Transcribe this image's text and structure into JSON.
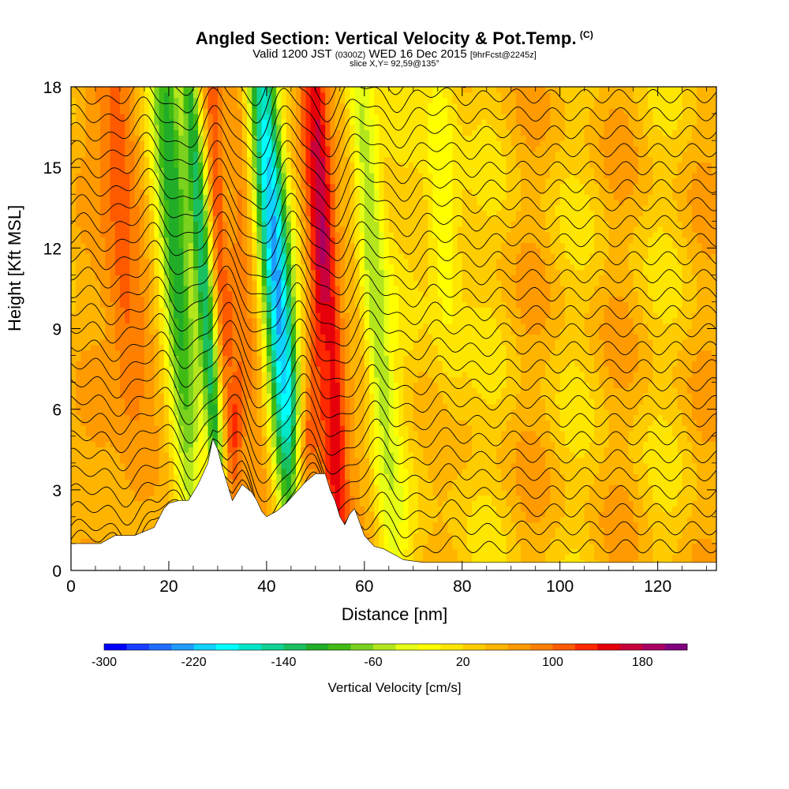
{
  "title": {
    "main": "Angled Section: Vertical Velocity & Pot.Temp.",
    "main_suffix": "(C)",
    "valid_prefix": "Valid 1200 JST",
    "valid_zulu": "(0300Z)",
    "valid_date": "WED 16 Dec 2015",
    "forecast": "[9hrFcst@2245z]",
    "slice": "slice X,Y= 92,59@135°"
  },
  "chart_data": {
    "type": "heatmap",
    "xlabel": "Distance [nm]",
    "ylabel": "Height [Kft MSL]",
    "xlim": [
      0,
      132
    ],
    "ylim": [
      0,
      18
    ],
    "xticks": [
      0,
      20,
      40,
      60,
      80,
      100,
      120
    ],
    "yticks": [
      0,
      3,
      6,
      9,
      12,
      15,
      18
    ],
    "colorbar": {
      "label": "Vertical Velocity [cm/s]",
      "min": -300,
      "max": 200,
      "step": 20,
      "tick_labels": [
        -300,
        -220,
        -140,
        -60,
        20,
        100,
        180
      ],
      "colors": [
        "#0000ff",
        "#1a3cff",
        "#1f6cff",
        "#1e9cff",
        "#10d2ff",
        "#00ffff",
        "#00e6c8",
        "#10d294",
        "#1ac060",
        "#22ad28",
        "#40bb14",
        "#7ad21e",
        "#b4e61e",
        "#e6ff14",
        "#ffff00",
        "#ffe600",
        "#ffcc00",
        "#ffb400",
        "#ff9a00",
        "#ff8000",
        "#ff5a00",
        "#ff2800",
        "#e6000a",
        "#c8003c",
        "#aa0064",
        "#800080"
      ]
    },
    "terrain_kft": {
      "x": [
        0,
        6,
        9,
        13,
        17,
        19,
        20,
        22,
        24,
        26,
        28,
        29,
        30,
        31,
        32,
        33,
        34,
        35,
        37,
        38,
        39,
        40,
        42,
        44,
        46,
        48,
        50,
        52,
        53,
        54,
        55,
        56,
        57,
        58,
        60,
        62,
        64,
        66,
        68,
        72,
        80,
        90,
        100,
        110,
        120,
        132
      ],
      "y": [
        1.0,
        1.0,
        1.3,
        1.3,
        1.6,
        2.3,
        2.5,
        2.6,
        2.6,
        3.2,
        4.0,
        4.9,
        4.5,
        3.8,
        3.2,
        2.6,
        2.9,
        3.2,
        2.9,
        2.6,
        2.2,
        2.0,
        2.2,
        2.5,
        2.9,
        3.3,
        3.6,
        3.6,
        3.0,
        2.6,
        2.0,
        1.7,
        2.1,
        2.3,
        1.3,
        0.9,
        0.8,
        0.6,
        0.4,
        0.3,
        0.3,
        0.3,
        0.3,
        0.3,
        0.3,
        0.3
      ]
    },
    "velocity_features": [
      {
        "x": 17,
        "y": 8,
        "dx": 8,
        "dy": 26,
        "slope": -0.9,
        "value": 60
      },
      {
        "x": 10,
        "y": 14,
        "dx": 4,
        "dy": 12,
        "slope": -0.3,
        "value": 110
      },
      {
        "x": 21,
        "y": 13,
        "dx": 3.5,
        "dy": 14,
        "slope": -0.35,
        "value": -120
      },
      {
        "x": 33,
        "y": 5,
        "dx": 2.5,
        "dy": 5,
        "slope": 0.6,
        "value": 140
      },
      {
        "x": 32,
        "y": 9,
        "dx": 2.5,
        "dy": 4,
        "slope": 0.6,
        "value": 100
      },
      {
        "x": 30,
        "y": 13,
        "dx": 2,
        "dy": 14,
        "slope": -0.2,
        "value": 120
      },
      {
        "x": 27,
        "y": 11,
        "dx": 2,
        "dy": 14,
        "slope": -0.4,
        "value": -140
      },
      {
        "x": 35,
        "y": 14,
        "dx": 3,
        "dy": 14,
        "slope": -0.3,
        "value": 90
      },
      {
        "x": 42,
        "y": 11,
        "dx": 3.3,
        "dy": 14,
        "slope": -0.4,
        "value": -230
      },
      {
        "x": 52,
        "y": 11,
        "dx": 3.5,
        "dy": 14,
        "slope": -0.3,
        "value": 190
      },
      {
        "x": 50,
        "y": 6,
        "dx": 3,
        "dy": 4,
        "slope": 0.7,
        "value": 120
      },
      {
        "x": 57,
        "y": 10,
        "dx": 2.5,
        "dy": 14,
        "slope": -0.3,
        "value": 60
      },
      {
        "x": 62,
        "y": 11,
        "dx": 3,
        "dy": 14,
        "slope": -0.4,
        "value": -60
      },
      {
        "x": 76,
        "y": 14,
        "dx": 4,
        "dy": 8,
        "slope": -0.2,
        "value": -20
      },
      {
        "x": 1,
        "y": 5,
        "dx": 6,
        "dy": 4,
        "slope": 0,
        "value": 60
      },
      {
        "x": 12,
        "y": 3,
        "dx": 5,
        "dy": 2,
        "slope": 0,
        "value": 60
      }
    ],
    "theta_contours": {
      "count": 27,
      "base_height_kft": 0.9,
      "spacing_kft": 0.67
    }
  }
}
